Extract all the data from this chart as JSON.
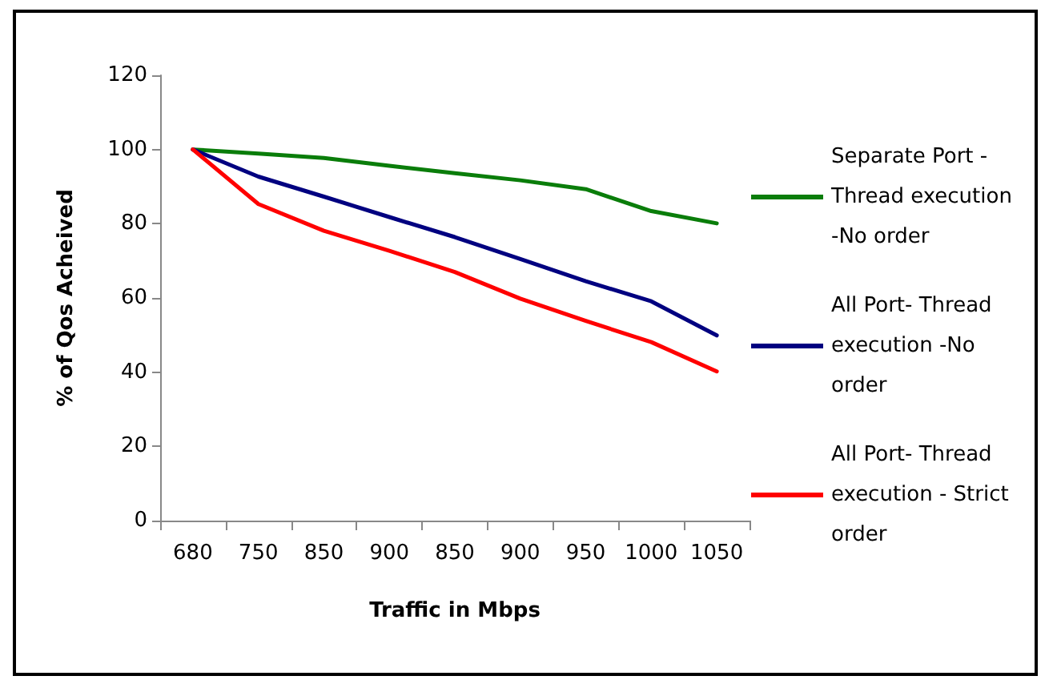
{
  "chart_data": {
    "type": "line",
    "xlabel": "Traffic in Mbps",
    "ylabel": "% of Qos Acheived",
    "categories": [
      "680",
      "750",
      "850",
      "900",
      "850",
      "900",
      "950",
      "1000",
      "1050"
    ],
    "series": [
      {
        "name": "Separate Port - Thread execution -No order",
        "color": "#0a7d0a",
        "values": [
          100,
          98.9,
          97.7,
          95.6,
          93.6,
          91.7,
          89.3,
          83.4,
          80.1
        ]
      },
      {
        "name": "All Port- Thread execution -No order",
        "color": "#000080",
        "values": [
          100,
          92.7,
          87.3,
          81.8,
          76.4,
          70.5,
          64.5,
          59.1,
          49.9
        ]
      },
      {
        "name": "All Port- Thread execution - Strict order",
        "color": "#ff0000",
        "values": [
          100,
          85.3,
          78.1,
          72.7,
          67,
          59.8,
          53.8,
          48.1,
          40.2
        ]
      }
    ],
    "ylim": [
      0,
      120
    ],
    "yticks": [
      0,
      20,
      40,
      60,
      80,
      100,
      120
    ],
    "grid": false,
    "legend": "right",
    "marker": "none",
    "line_style": "solid"
  }
}
